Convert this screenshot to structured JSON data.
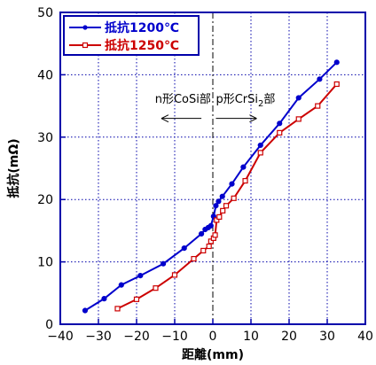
{
  "chart_data": {
    "type": "line",
    "xlabel": "距離(mm)",
    "ylabel": "抵抗(mΩ)",
    "xlim": [
      -40,
      40
    ],
    "ylim": [
      0,
      50
    ],
    "xticks": [
      -40,
      -30,
      -20,
      -10,
      0,
      10,
      20,
      30,
      40
    ],
    "yticks": [
      0,
      10,
      20,
      30,
      40,
      50
    ],
    "xtick_labels": [
      "−40",
      "−30",
      "−20",
      "−10",
      "0",
      "10",
      "20",
      "30",
      "40"
    ],
    "ytick_labels": [
      "0",
      "10",
      "20",
      "30",
      "40",
      "50"
    ],
    "grid": true,
    "legend_position": "top-left",
    "zero_divider": "dash-dot vertical line at x = 0",
    "annotations": {
      "left_region": "n形CoSi部",
      "right_region_prefix": "p形CrSi",
      "right_region_subscript": "2",
      "right_region_suffix": "部"
    },
    "series": [
      {
        "name": "抵抗1200℃",
        "color": "#0000cc",
        "marker": "filled-circle",
        "x": [
          -33.5,
          -28.5,
          -24,
          -19,
          -13,
          -7.5,
          -3,
          -2,
          -1.2,
          -0.5,
          0.2,
          0.8,
          1.5,
          2.5,
          5,
          8,
          12.5,
          17.5,
          22.5,
          28,
          32.5
        ],
        "y": [
          2.2,
          4.1,
          6.3,
          7.8,
          9.7,
          12.2,
          14.5,
          15.2,
          15.5,
          15.8,
          17.3,
          19,
          19.7,
          20.5,
          22.5,
          25.2,
          28.7,
          32.2,
          36.3,
          39.3,
          42
        ]
      },
      {
        "name": "抵抗1250℃",
        "color": "#cc0000",
        "marker": "open-square",
        "x": [
          -25,
          -20,
          -15,
          -10,
          -5,
          -2.5,
          -1,
          -0.5,
          0.2,
          0.6,
          1,
          1.7,
          2.6,
          3.5,
          5.5,
          8.5,
          12.5,
          17.5,
          22.5,
          27.5,
          32.5
        ],
        "y": [
          2.5,
          4.0,
          5.8,
          7.9,
          10.5,
          11.8,
          12.5,
          13.3,
          13.8,
          14.3,
          16.7,
          17.2,
          18.2,
          19.0,
          20.2,
          23.0,
          27.5,
          30.7,
          32.9,
          35.0,
          38.5
        ]
      }
    ]
  }
}
